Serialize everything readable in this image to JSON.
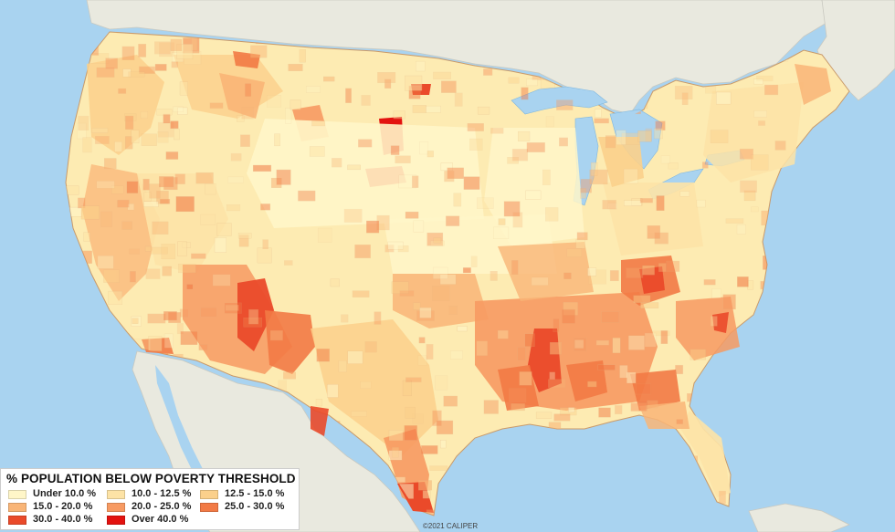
{
  "legend": {
    "title": "% POPULATION BELOW POVERTY THRESHOLD",
    "items": [
      {
        "label": "Under 10.0 %",
        "color": "#fff6c8"
      },
      {
        "label": "10.0 - 12.5 %",
        "color": "#fde3a6"
      },
      {
        "label": "12.5 - 15.0 %",
        "color": "#fbd08b"
      },
      {
        "label": "15.0 - 20.0 %",
        "color": "#f9b577"
      },
      {
        "label": "20.0 - 25.0 %",
        "color": "#f79a62"
      },
      {
        "label": "25.0 - 30.0 %",
        "color": "#f27a45"
      },
      {
        "label": "30.0 - 40.0 %",
        "color": "#ea4a2a"
      },
      {
        "label": "Over 40.0 %",
        "color": "#e3120f"
      }
    ]
  },
  "credit": "©2021 CALIPER",
  "colors": {
    "water": "#a9d3f0",
    "land_other": "#e9e9df",
    "us_base": "#fdebb2"
  }
}
